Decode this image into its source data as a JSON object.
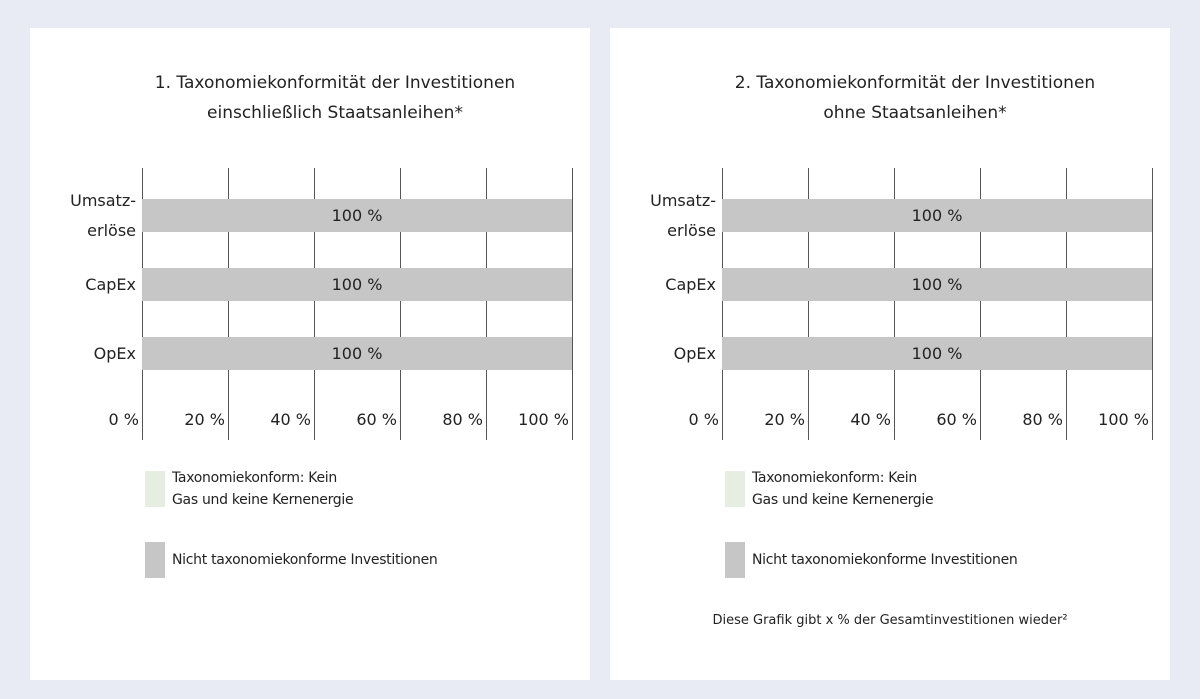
{
  "chart_data": [
    {
      "type": "bar",
      "orientation": "horizontal",
      "stacked": true,
      "grid": true,
      "title": "1. Taxonomiekonformität der Investitionen\neinschließlich  Staatsanleihen*",
      "categories": [
        "Umsatz-\nerlöse",
        "CapEx",
        "OpEx"
      ],
      "series": [
        {
          "name": "Taxonomiekonform: Kein\nGas und keine Kernenergie",
          "color": "#e5eee0",
          "values": [
            0,
            0,
            0
          ]
        },
        {
          "name": "Nicht taxonomiekonforme Investitionen",
          "color": "#c6c6c6",
          "values": [
            100,
            100,
            100
          ],
          "value_labels": [
            "100 %",
            "100 %",
            "100 %"
          ]
        }
      ],
      "xlim": [
        0,
        100
      ],
      "xticks": [
        {
          "value": 0,
          "label": "0 %"
        },
        {
          "value": 20,
          "label": "20 %"
        },
        {
          "value": 40,
          "label": "40 %"
        },
        {
          "value": 60,
          "label": "60 %"
        },
        {
          "value": 80,
          "label": "80 %"
        },
        {
          "value": 100,
          "label": "100 %"
        }
      ]
    },
    {
      "type": "bar",
      "orientation": "horizontal",
      "stacked": true,
      "grid": true,
      "title": "2. Taxonomiekonformität der Investitionen\nohne Staatsanleihen*",
      "categories": [
        "Umsatz-\nerlöse",
        "CapEx",
        "OpEx"
      ],
      "series": [
        {
          "name": "Taxonomiekonform: Kein\nGas und keine Kernenergie",
          "color": "#e5eee0",
          "values": [
            0,
            0,
            0
          ]
        },
        {
          "name": "Nicht taxonomiekonforme Investitionen",
          "color": "#c6c6c6",
          "values": [
            100,
            100,
            100
          ],
          "value_labels": [
            "100 %",
            "100 %",
            "100 %"
          ]
        }
      ],
      "xlim": [
        0,
        100
      ],
      "xticks": [
        {
          "value": 0,
          "label": "0 %"
        },
        {
          "value": 20,
          "label": "20 %"
        },
        {
          "value": 40,
          "label": "40 %"
        },
        {
          "value": 60,
          "label": "60 %"
        },
        {
          "value": 80,
          "label": "80 %"
        },
        {
          "value": 100,
          "label": "100 %"
        }
      ],
      "note": "Diese Grafik gibt x % der Gesamtinvestitionen wieder²"
    }
  ]
}
